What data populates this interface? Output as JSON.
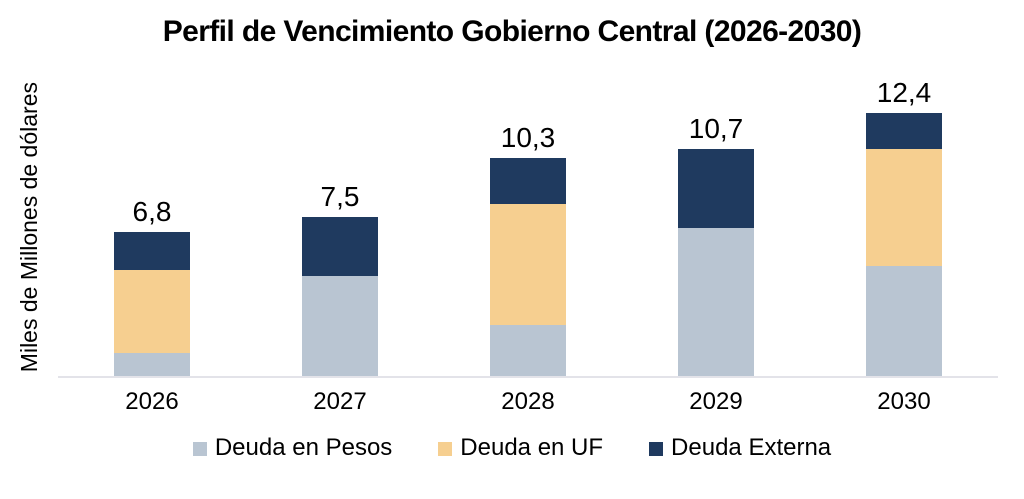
{
  "title": "Perfil de Vencimiento Gobierno Central (2026-2030)",
  "colors": {
    "pesos": "#b9c5d2",
    "uf": "#f6cf90",
    "externa": "#1f3a5f",
    "axis_line": "#e3e3e9",
    "text": "#000000",
    "background": "#ffffff"
  },
  "chart_data": {
    "type": "bar",
    "stacked": true,
    "title": "Perfil de Vencimiento Gobierno Central (2026-2030)",
    "xlabel": "",
    "ylabel": "Miles de Millones de dólares",
    "categories": [
      "2026",
      "2027",
      "2028",
      "2029",
      "2030"
    ],
    "series": [
      {
        "name": "Deuda en Pesos",
        "color_key": "pesos",
        "values": [
          1.1,
          4.7,
          2.4,
          7.0,
          5.2
        ]
      },
      {
        "name": "Deuda en UF",
        "color_key": "uf",
        "values": [
          3.9,
          0,
          5.7,
          0,
          5.5
        ]
      },
      {
        "name": "Deuda Externa",
        "color_key": "externa",
        "values": [
          1.8,
          2.8,
          2.2,
          3.7,
          1.7
        ]
      }
    ],
    "totals": [
      6.8,
      7.5,
      10.3,
      10.7,
      12.4
    ],
    "total_labels": [
      "6,8",
      "7,5",
      "10,3",
      "10,7",
      "12,4"
    ],
    "ylim": [
      0,
      14
    ],
    "y_ticks_visible": false,
    "grid": false,
    "legend_position": "bottom"
  }
}
